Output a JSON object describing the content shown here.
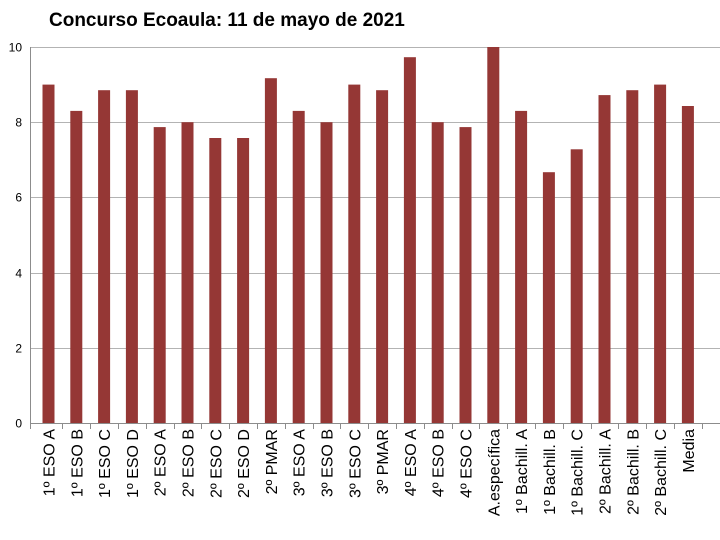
{
  "chart_data": {
    "type": "bar",
    "title": "Concurso Ecoaula: 11 de mayo de 2021",
    "xlabel": "",
    "ylabel": "",
    "ylim": [
      0,
      10
    ],
    "yticks": [
      "0",
      "2",
      "4",
      "6",
      "8",
      "10"
    ],
    "grid": true,
    "legend": "none",
    "bar_color": "#953735",
    "categories": [
      "1º ESO A",
      "1º ESO B",
      "1º ESO C",
      "1º ESO D",
      "2º ESO A",
      "2º ESO B",
      "2º ESO C",
      "2º ESO D",
      "2º PMAR",
      "3º ESO A",
      "3º ESO B",
      "3º ESO C",
      "3º PMAR",
      "4º ESO A",
      "4º ESO B",
      "4º ESO C",
      "A.específica",
      "1º Bachill. A",
      "1º Bachill. B",
      "1º Bachill. C",
      "2º Bachill. A",
      "2º Bachill. B",
      "2º Bachill. C",
      "Media"
    ],
    "values": [
      9.0,
      8.3,
      8.85,
      8.85,
      7.87,
      8.0,
      7.58,
      7.58,
      9.17,
      8.3,
      8.0,
      9.0,
      8.85,
      9.73,
      8.0,
      7.87,
      10.0,
      8.3,
      6.67,
      7.28,
      8.72,
      8.85,
      9.0,
      8.43
    ]
  }
}
